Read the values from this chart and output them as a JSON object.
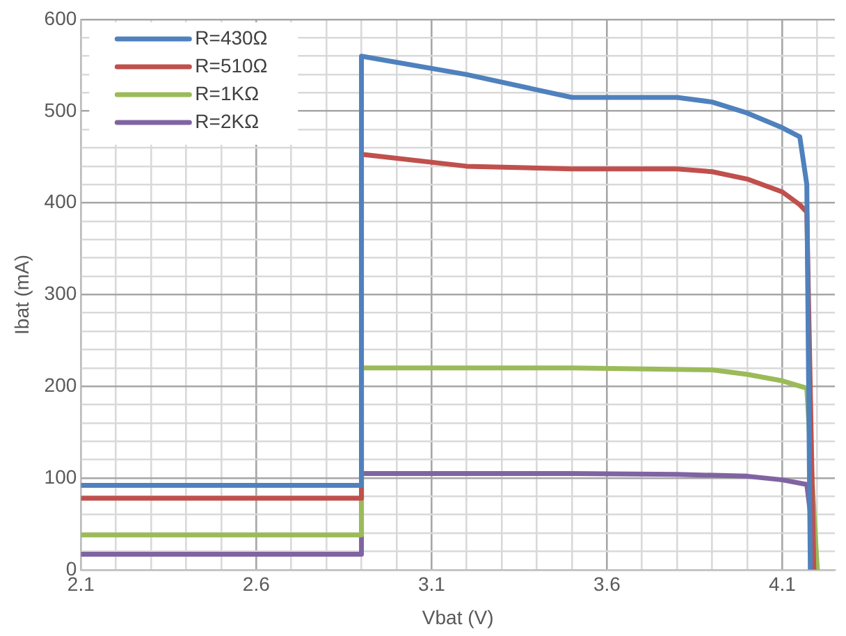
{
  "chart_data": {
    "type": "line",
    "xlabel": "Vbat (V)",
    "ylabel": "Ibat (mA)",
    "xlim": [
      2.1,
      4.25
    ],
    "xticks": [
      2.1,
      2.6,
      3.1,
      3.6,
      4.1
    ],
    "ylim": [
      0,
      600
    ],
    "yticks": [
      0,
      100,
      200,
      300,
      400,
      500,
      600
    ],
    "grid": true,
    "legend": "top left",
    "marker": "none",
    "line_style": "solid",
    "series": [
      {
        "name": "R=430Ω",
        "color": "#4f81bd",
        "x": [
          2.1,
          2.9,
          2.9,
          3.2,
          3.5,
          3.8,
          3.9,
          4.0,
          4.1,
          4.15,
          4.17,
          4.18
        ],
        "values": [
          92,
          92,
          560,
          540,
          515,
          515,
          510,
          498,
          482,
          472,
          420,
          0
        ]
      },
      {
        "name": "R=510Ω",
        "color": "#c0504d",
        "x": [
          2.1,
          2.9,
          2.9,
          3.2,
          3.5,
          3.8,
          3.9,
          4.0,
          4.1,
          4.15,
          4.17,
          4.19
        ],
        "values": [
          78,
          78,
          453,
          440,
          437,
          437,
          434,
          426,
          412,
          398,
          390,
          0
        ]
      },
      {
        "name": "R=1KΩ",
        "color": "#9bbb59",
        "x": [
          2.1,
          2.9,
          2.9,
          3.5,
          3.9,
          4.0,
          4.1,
          4.17,
          4.2
        ],
        "values": [
          38,
          38,
          220,
          220,
          218,
          213,
          206,
          198,
          0
        ]
      },
      {
        "name": "R=2KΩ",
        "color": "#8064a2",
        "x": [
          2.1,
          2.9,
          2.9,
          3.5,
          3.8,
          4.0,
          4.1,
          4.17,
          4.2
        ],
        "values": [
          17,
          17,
          105,
          105,
          104,
          102,
          98,
          93,
          0
        ]
      }
    ]
  }
}
